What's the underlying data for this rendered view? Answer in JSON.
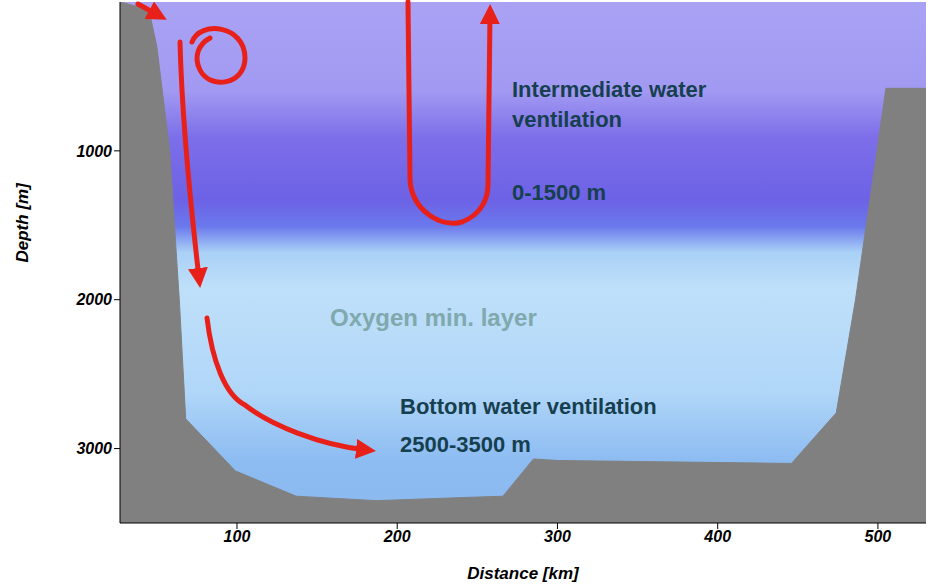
{
  "chart_data": {
    "type": "area",
    "x_label": "Distance [km]",
    "y_label": "Depth [m]",
    "x": [
      27,
      45,
      50,
      58,
      64,
      68,
      99,
      137,
      187,
      238,
      266,
      285,
      300,
      446,
      474,
      486,
      505,
      530
    ],
    "values": [
      0,
      50,
      300,
      1000,
      2000,
      2800,
      3150,
      3320,
      3350,
      3330,
      3320,
      3070,
      3080,
      3100,
      2760,
      2000,
      580,
      580
    ],
    "color": "#808080",
    "xlim": [
      27,
      530
    ],
    "xticks": [
      100,
      200,
      300,
      400,
      500
    ],
    "ylim": [
      0,
      3500
    ],
    "yticks": [
      1000,
      2000,
      3000
    ],
    "annotations": [
      "Intermediate water ventilation",
      "0-1500 m",
      "Oxygen min. layer",
      "Bottom water ventilation",
      "2500-3500 m"
    ]
  }
}
